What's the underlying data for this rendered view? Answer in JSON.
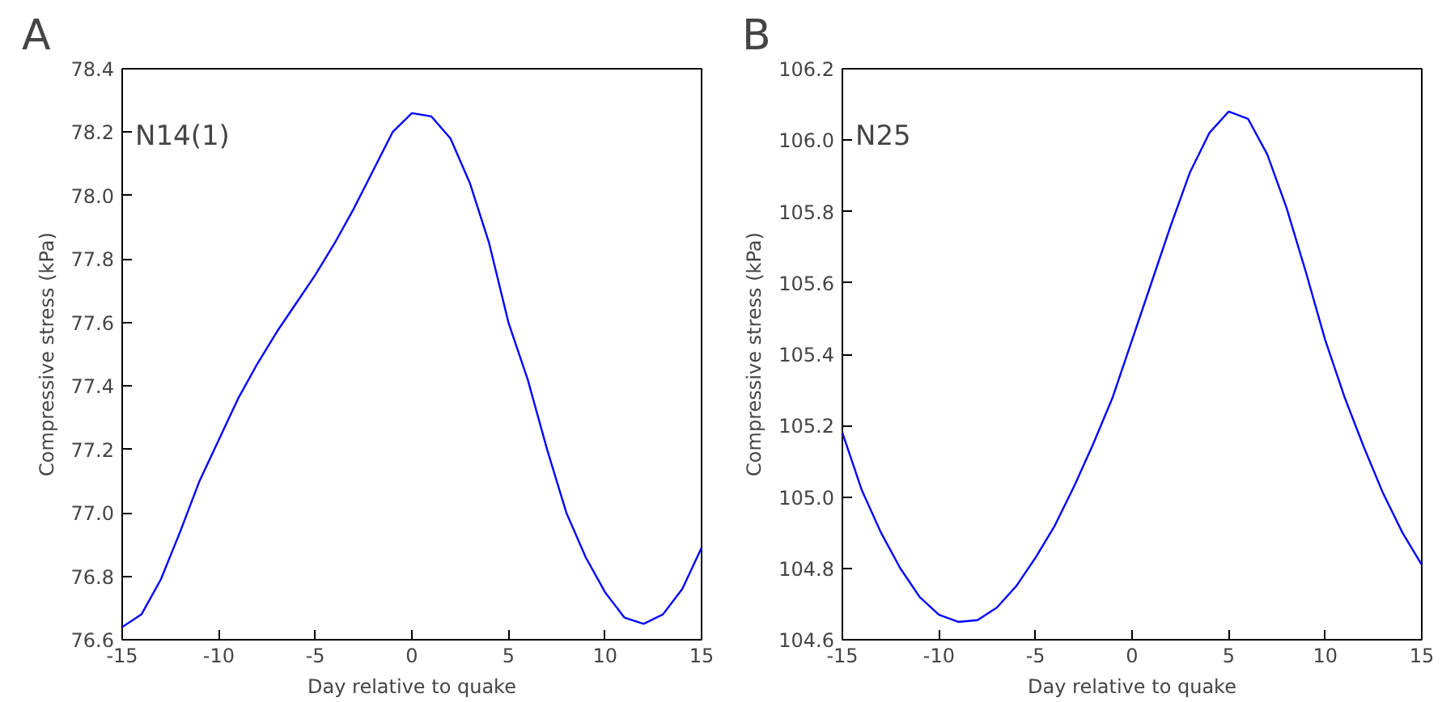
{
  "chart_data": [
    {
      "type": "line",
      "title": "A",
      "annotations": [
        "N14(1)"
      ],
      "xlabel": "Day relative to quake",
      "ylabel": "Compressive stress (kPa)",
      "x": [
        -15,
        -14,
        -13,
        -12,
        -11,
        -10,
        -9,
        -8,
        -7,
        -6,
        -5,
        -4,
        -3,
        -2,
        -1,
        0,
        1,
        2,
        3,
        4,
        5,
        6,
        7,
        8,
        9,
        10,
        11,
        12,
        13,
        14,
        15
      ],
      "series": [
        {
          "color": "#0000ff",
          "values": [
            76.64,
            76.68,
            76.79,
            76.94,
            77.1,
            77.23,
            77.36,
            77.47,
            77.57,
            77.66,
            77.75,
            77.85,
            77.96,
            78.08,
            78.2,
            78.26,
            78.25,
            78.18,
            78.04,
            77.85,
            77.6,
            77.42,
            77.2,
            77.0,
            76.86,
            76.75,
            76.67,
            76.65,
            76.68,
            76.76,
            76.89
          ]
        }
      ],
      "xlim": [
        -15,
        15
      ],
      "xticks": [
        -15,
        -10,
        -5,
        0,
        5,
        10,
        15
      ],
      "ylim": [
        76.6,
        78.4
      ],
      "yticks": [
        76.6,
        76.8,
        {
          "value": 77,
          "label": "77.0"
        },
        77.2,
        77.4,
        77.6,
        77.8,
        {
          "value": 78,
          "label": "78.0"
        },
        78.2,
        78.4
      ],
      "grid": false,
      "marker": "none",
      "line_style": "solid"
    },
    {
      "type": "line",
      "title": "B",
      "annotations": [
        "N25"
      ],
      "xlabel": "Day relative to quake",
      "ylabel": "Compressive stress (kPa)",
      "x": [
        -15,
        -14,
        -13,
        -12,
        -11,
        -10,
        -9,
        -8,
        -7,
        -6,
        -5,
        -4,
        -3,
        -2,
        -1,
        0,
        1,
        2,
        3,
        4,
        5,
        6,
        7,
        8,
        9,
        10,
        11,
        12,
        13,
        14,
        15
      ],
      "series": [
        {
          "color": "#0000ff",
          "values": [
            105.18,
            105.02,
            104.9,
            104.8,
            104.72,
            104.67,
            104.65,
            104.655,
            104.69,
            104.75,
            104.83,
            104.92,
            105.03,
            105.15,
            105.28,
            105.44,
            105.6,
            105.76,
            105.91,
            106.02,
            106.08,
            106.06,
            105.96,
            105.81,
            105.63,
            105.44,
            105.28,
            105.14,
            105.01,
            104.9,
            104.81
          ]
        }
      ],
      "xlim": [
        -15,
        15
      ],
      "xticks": [
        -15,
        -10,
        -5,
        0,
        5,
        10,
        15
      ],
      "ylim": [
        104.6,
        106.2
      ],
      "yticks": [
        104.6,
        104.8,
        {
          "value": 105,
          "label": "105.0"
        },
        105.2,
        105.4,
        105.6,
        105.8,
        {
          "value": 106,
          "label": "106.0"
        },
        106.2
      ],
      "grid": false,
      "marker": "none",
      "line_style": "solid"
    }
  ]
}
